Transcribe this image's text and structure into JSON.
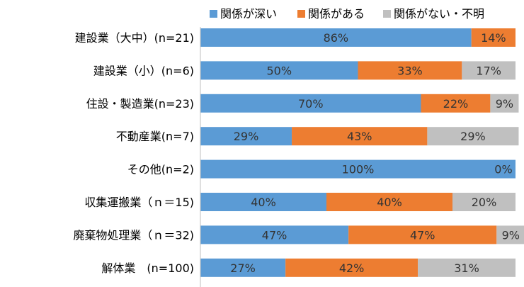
{
  "chart_data": {
    "type": "bar",
    "orientation": "horizontal",
    "stacked": true,
    "percent_stacked": true,
    "categories": [
      "建設業（大中）(n=21)",
      "建設業（小）(n=6)",
      "住設・製造業(n=23)",
      "不動産業(n=7)",
      "その他(n=2)",
      "収集運搬業（ｎ＝15)",
      "廃棄物処理業（ｎ＝32)",
      "解体業　(n=100)"
    ],
    "series": [
      {
        "name": "関係が深い",
        "color": "#5b9bd5",
        "values": [
          86,
          50,
          70,
          29,
          100,
          40,
          47,
          27
        ],
        "labels": [
          "86%",
          "50%",
          "70%",
          "29%",
          "100%",
          "40%",
          "47%",
          "27%"
        ]
      },
      {
        "name": "関係がある",
        "color": "#ed7d31",
        "values": [
          14,
          33,
          22,
          43,
          0,
          40,
          47,
          42
        ],
        "labels": [
          "14%",
          "33%",
          "22%",
          "43%",
          "0%",
          "40%",
          "47%",
          "42%"
        ]
      },
      {
        "name": "関係がない・不明",
        "color": "#c0c0c0",
        "values": [
          0,
          17,
          9,
          29,
          0,
          20,
          9,
          31
        ],
        "labels": [
          "",
          "17%",
          "9%",
          "29%",
          "",
          "20%",
          "9%",
          "31%"
        ]
      }
    ],
    "xlim": [
      0,
      100
    ],
    "grid": false,
    "legend_position": "top"
  }
}
